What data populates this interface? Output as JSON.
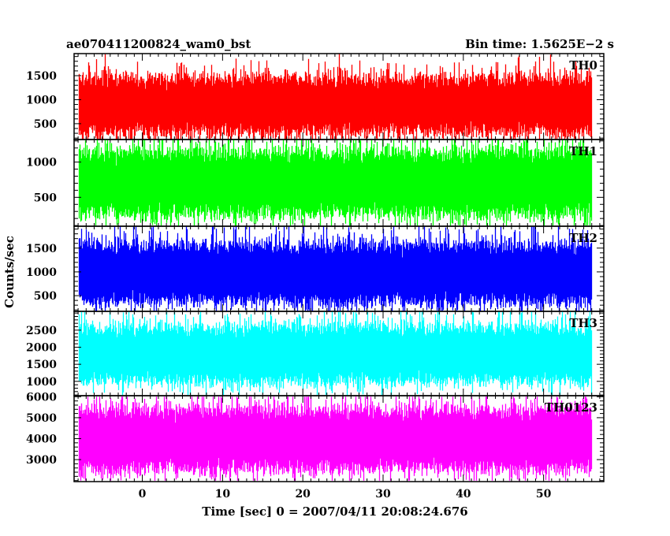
{
  "header": {
    "left_title": "ae070411200824_wam0_bst",
    "right_title": "Bin time: 1.5625E−2 s"
  },
  "chart_data": {
    "type": "line",
    "title": "ae070411200824_wam0_bst",
    "subtitle": "Bin time: 1.5625E−2 s",
    "xlabel": "Time [sec] 0 = 2007/04/11 20:08:24.676",
    "ylabel": "Counts/sec",
    "xlim": [
      -8.5,
      57.5
    ],
    "x_ticks": [
      0,
      10,
      20,
      30,
      40,
      50
    ],
    "x_tick_labels": [
      "0",
      "10",
      "20",
      "30",
      "40",
      "50"
    ],
    "data_x_range": [
      -7.9,
      55.9
    ],
    "bin_time_s": 0.015625,
    "grid": false,
    "legend": "none (panel labels top-right)",
    "panels": [
      {
        "name": "TH0",
        "color": "#ff0000",
        "ylim": [
          170,
          1960
        ],
        "yticks": [
          500,
          1000,
          1500
        ],
        "ytick_labels": [
          "500",
          "1000",
          "1500"
        ],
        "typical_low": 280,
        "typical_high": 1500,
        "min": 100,
        "max": 2000
      },
      {
        "name": "TH1",
        "color": "#00ff00",
        "ylim": [
          90,
          1320
        ],
        "yticks": [
          500,
          1000
        ],
        "ytick_labels": [
          "500",
          "1000"
        ],
        "typical_low": 230,
        "typical_high": 1180,
        "min": 100,
        "max": 1400
      },
      {
        "name": "TH2",
        "color": "#0000ff",
        "ylim": [
          170,
          1960
        ],
        "yticks": [
          500,
          1000,
          1500
        ],
        "ytick_labels": [
          "500",
          "1000",
          "1500"
        ],
        "typical_low": 320,
        "typical_high": 1620,
        "min": 150,
        "max": 1950
      },
      {
        "name": "TH3",
        "color": "#00ffff",
        "ylim": [
          580,
          3050
        ],
        "yticks": [
          1000,
          1500,
          2000,
          2500
        ],
        "ytick_labels": [
          "1000",
          "1500",
          "2000",
          "2500"
        ],
        "typical_low": 930,
        "typical_high": 2650,
        "min": 600,
        "max": 3050
      },
      {
        "name": "TH0123",
        "color": "#ff00ff",
        "ylim": [
          1950,
          6050
        ],
        "yticks": [
          3000,
          4000,
          5000,
          6000
        ],
        "ytick_labels": [
          "3000",
          "4000",
          "5000",
          "6000"
        ],
        "typical_low": 2450,
        "typical_high": 5500,
        "min": 2000,
        "max": 6000
      }
    ]
  }
}
